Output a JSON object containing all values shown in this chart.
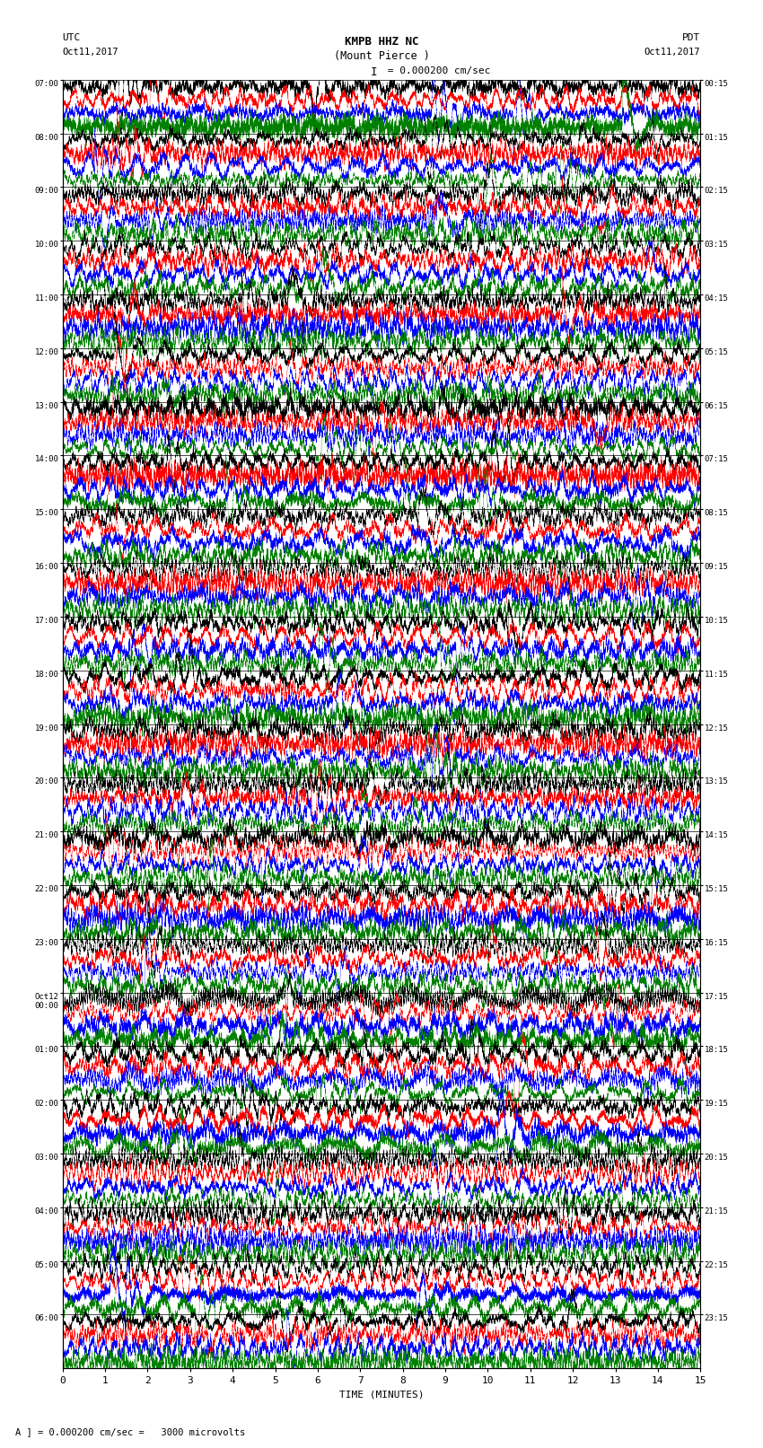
{
  "title_line1": "KMPB HHZ NC",
  "title_line2": "(Mount Pierce )",
  "scale_label": "= 0.000200 cm/sec",
  "left_header": "UTC",
  "left_date": "Oct11,2017",
  "right_header": "PDT",
  "right_date": "Oct11,2017",
  "xlabel": "TIME (MINUTES)",
  "footer": "A ] = 0.000200 cm/sec =   3000 microvolts",
  "left_times": [
    "07:00",
    "08:00",
    "09:00",
    "10:00",
    "11:00",
    "12:00",
    "13:00",
    "14:00",
    "15:00",
    "16:00",
    "17:00",
    "18:00",
    "19:00",
    "20:00",
    "21:00",
    "22:00",
    "23:00",
    "Oct12\n00:00",
    "01:00",
    "02:00",
    "03:00",
    "04:00",
    "05:00",
    "06:00"
  ],
  "right_times": [
    "00:15",
    "01:15",
    "02:15",
    "03:15",
    "04:15",
    "05:15",
    "06:15",
    "07:15",
    "08:15",
    "09:15",
    "10:15",
    "11:15",
    "12:15",
    "13:15",
    "14:15",
    "15:15",
    "16:15",
    "17:15",
    "18:15",
    "19:15",
    "20:15",
    "21:15",
    "22:15",
    "23:15"
  ],
  "n_rows": 24,
  "traces_per_row": 4,
  "colors": [
    "black",
    "red",
    "blue",
    "green"
  ],
  "xmin": 0,
  "xmax": 15,
  "xticks": [
    0,
    1,
    2,
    3,
    4,
    5,
    6,
    7,
    8,
    9,
    10,
    11,
    12,
    13,
    14,
    15
  ],
  "background_color": "white",
  "seed": 42
}
